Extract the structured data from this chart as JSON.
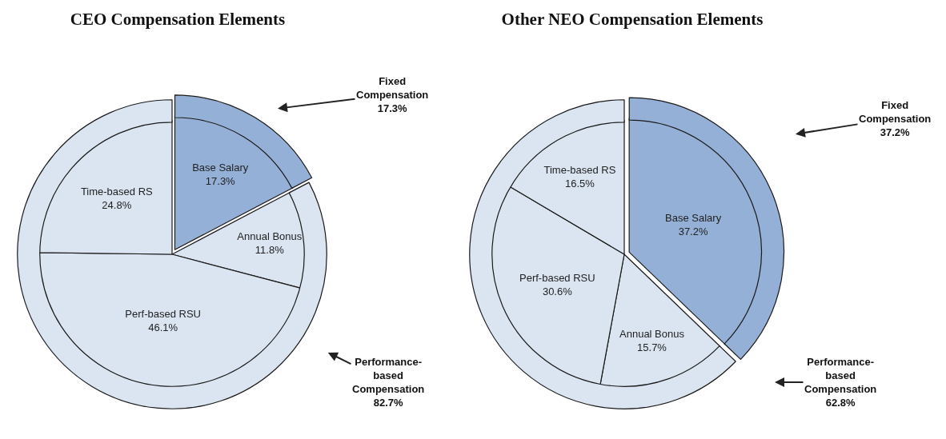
{
  "chart_data": [
    {
      "type": "pie",
      "title": "CEO Compensation Elements",
      "categories": [
        "Base Salary",
        "Annual Bonus",
        "Perf-based RSU",
        "Time-based RS"
      ],
      "values": [
        17.3,
        11.8,
        46.1,
        24.8
      ],
      "value_labels": [
        "17.3%",
        "11.8%",
        "46.1%",
        "24.8%"
      ],
      "colors": [
        "#94b0d6",
        "#dbe5f1",
        "#dbe5f1",
        "#dbe5f1"
      ]
    },
    {
      "type": "donut",
      "categories": [
        "Fixed Compensation",
        "Performance-based Compensation"
      ],
      "values": [
        17.3,
        82.7
      ],
      "value_labels": [
        "17.3%",
        "82.7%"
      ],
      "colors": [
        "#94b0d6",
        "#dbe5f1"
      ]
    },
    {
      "type": "pie",
      "title": "Other NEO Compensation Elements",
      "categories": [
        "Base Salary",
        "Annual Bonus",
        "Perf-based RSU",
        "Time-based RS"
      ],
      "values": [
        37.2,
        15.7,
        30.6,
        16.5
      ],
      "value_labels": [
        "37.2%",
        "15.7%",
        "30.6%",
        "16.5%"
      ],
      "colors": [
        "#94b0d6",
        "#dbe5f1",
        "#dbe5f1",
        "#dbe5f1"
      ]
    },
    {
      "type": "donut",
      "categories": [
        "Fixed Compensation",
        "Performance-based Compensation"
      ],
      "values": [
        37.2,
        62.8
      ],
      "value_labels": [
        "37.2%",
        "62.8%"
      ],
      "colors": [
        "#94b0d6",
        "#dbe5f1"
      ]
    }
  ]
}
